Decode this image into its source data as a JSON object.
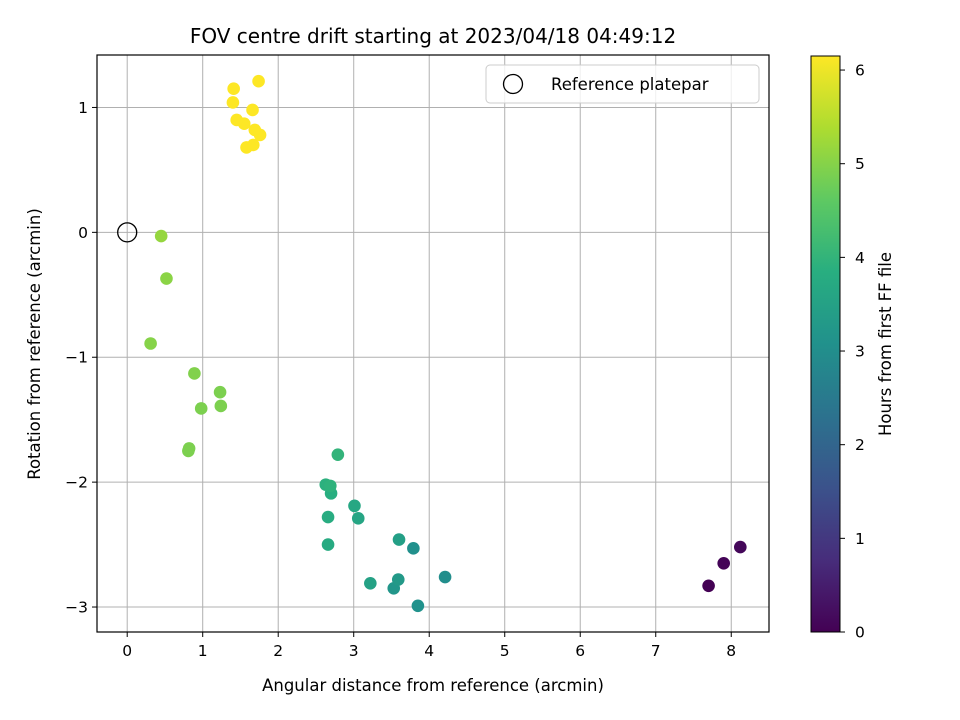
{
  "chart_data": {
    "type": "scatter",
    "title": "FOV centre drift starting at 2023/04/18 04:49:12",
    "xlabel": "Angular distance from reference (arcmin)",
    "ylabel": "Rotation from reference (arcmin)",
    "xlim": [
      -0.4,
      8.5
    ],
    "ylim": [
      -3.2,
      1.42
    ],
    "xticks": [
      0,
      1,
      2,
      3,
      4,
      5,
      6,
      7,
      8
    ],
    "yticks": [
      -3,
      -2,
      -1,
      0,
      1
    ],
    "xtick_labels": [
      "0",
      "1",
      "2",
      "3",
      "4",
      "5",
      "6",
      "7",
      "8"
    ],
    "ytick_labels": [
      "−3",
      "−2",
      "−1",
      "0",
      "1"
    ],
    "grid": true,
    "legend": {
      "position": "top-right",
      "entries": [
        "Reference platepar"
      ]
    },
    "colorbar": {
      "label": "Hours from first FF file",
      "range": [
        0,
        6.15
      ],
      "ticks": [
        0,
        1,
        2,
        3,
        4,
        5,
        6
      ],
      "tick_labels": [
        "0",
        "1",
        "2",
        "3",
        "4",
        "5",
        "6"
      ],
      "colormap": "viridis"
    },
    "reference_point": {
      "name": "Reference platepar",
      "x": 0,
      "y": 0
    },
    "points": [
      {
        "x": 7.7,
        "y": -2.83,
        "hours": 0.0
      },
      {
        "x": 7.9,
        "y": -2.65,
        "hours": 0.05
      },
      {
        "x": 8.12,
        "y": -2.52,
        "hours": 0.1
      },
      {
        "x": 4.21,
        "y": -2.76,
        "hours": 3.0
      },
      {
        "x": 3.79,
        "y": -2.53,
        "hours": 3.05
      },
      {
        "x": 3.85,
        "y": -2.99,
        "hours": 3.1
      },
      {
        "x": 3.53,
        "y": -2.85,
        "hours": 3.2
      },
      {
        "x": 3.59,
        "y": -2.78,
        "hours": 3.3
      },
      {
        "x": 3.6,
        "y": -2.46,
        "hours": 3.45
      },
      {
        "x": 3.22,
        "y": -2.81,
        "hours": 3.5
      },
      {
        "x": 3.06,
        "y": -2.29,
        "hours": 3.6
      },
      {
        "x": 3.01,
        "y": -2.19,
        "hours": 3.65
      },
      {
        "x": 2.66,
        "y": -2.5,
        "hours": 3.75
      },
      {
        "x": 2.66,
        "y": -2.28,
        "hours": 3.8
      },
      {
        "x": 2.7,
        "y": -2.09,
        "hours": 3.85
      },
      {
        "x": 2.63,
        "y": -2.02,
        "hours": 3.9
      },
      {
        "x": 2.69,
        "y": -2.03,
        "hours": 3.95
      },
      {
        "x": 2.79,
        "y": -1.78,
        "hours": 4.0
      },
      {
        "x": 0.81,
        "y": -1.75,
        "hours": 4.9
      },
      {
        "x": 0.82,
        "y": -1.73,
        "hours": 4.9
      },
      {
        "x": 0.98,
        "y": -1.41,
        "hours": 4.9
      },
      {
        "x": 1.24,
        "y": -1.39,
        "hours": 4.9
      },
      {
        "x": 1.23,
        "y": -1.28,
        "hours": 4.9
      },
      {
        "x": 0.89,
        "y": -1.13,
        "hours": 4.95
      },
      {
        "x": 0.31,
        "y": -0.89,
        "hours": 5.0
      },
      {
        "x": 0.52,
        "y": -0.37,
        "hours": 5.05
      },
      {
        "x": 0.45,
        "y": -0.03,
        "hours": 5.15
      },
      {
        "x": 1.58,
        "y": 0.68,
        "hours": 6.15
      },
      {
        "x": 1.67,
        "y": 0.7,
        "hours": 6.15
      },
      {
        "x": 1.76,
        "y": 0.78,
        "hours": 6.15
      },
      {
        "x": 1.69,
        "y": 0.82,
        "hours": 6.15
      },
      {
        "x": 1.55,
        "y": 0.87,
        "hours": 6.15
      },
      {
        "x": 1.45,
        "y": 0.9,
        "hours": 6.15
      },
      {
        "x": 1.66,
        "y": 0.98,
        "hours": 6.15
      },
      {
        "x": 1.4,
        "y": 1.04,
        "hours": 6.15
      },
      {
        "x": 1.41,
        "y": 1.15,
        "hours": 6.15
      },
      {
        "x": 1.74,
        "y": 1.21,
        "hours": 6.15
      }
    ]
  }
}
